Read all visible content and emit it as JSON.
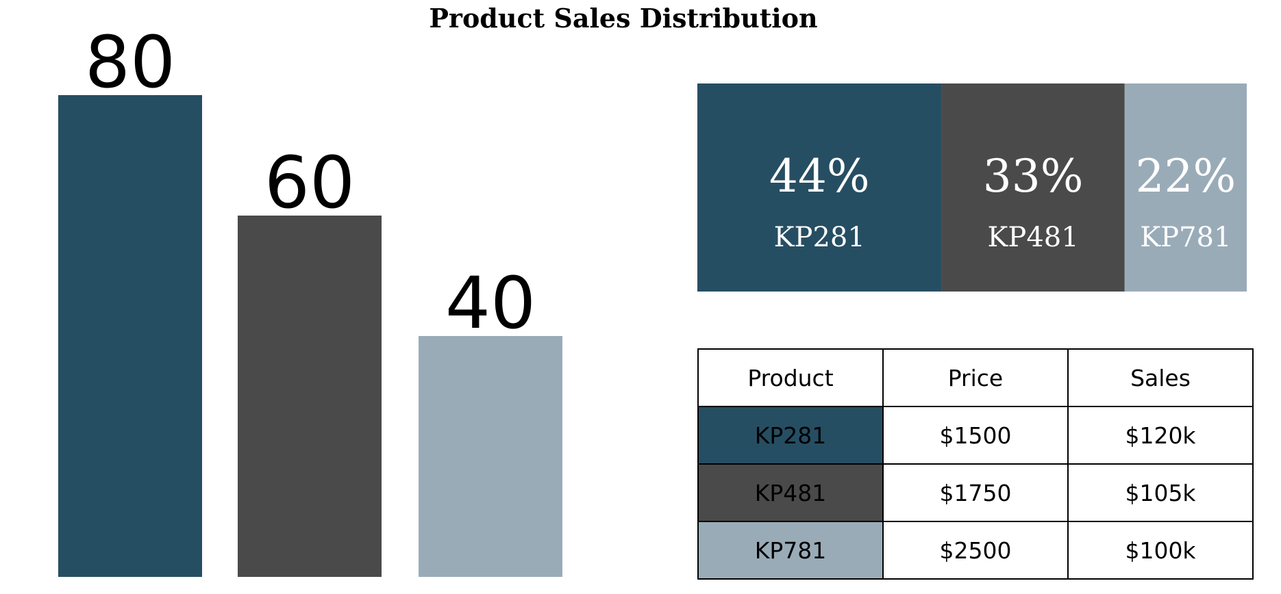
{
  "chart_data": {
    "title": "Product Sales Distribution",
    "bar_chart": {
      "type": "bar",
      "categories": [
        "KP281",
        "KP481",
        "KP781"
      ],
      "values": [
        80,
        60,
        40
      ],
      "data_labels": [
        "80",
        "60",
        "40"
      ],
      "ylim": [
        0,
        100
      ],
      "grid": false,
      "axes_visible": false
    },
    "share_chart": {
      "type": "stacked-bar",
      "orientation": "horizontal",
      "segments": [
        {
          "name": "KP281",
          "value": 44,
          "label": "44%"
        },
        {
          "name": "KP481",
          "value": 33,
          "label": "33%"
        },
        {
          "name": "KP781",
          "value": 22,
          "label": "22%"
        }
      ]
    },
    "table": {
      "type": "table",
      "columns": [
        "Product",
        "Price",
        "Sales"
      ],
      "rows": [
        [
          "KP281",
          "$1500",
          "$120k"
        ],
        [
          "KP481",
          "$1750",
          "$105k"
        ],
        [
          "KP781",
          "$2500",
          "$100k"
        ]
      ]
    },
    "colors": {
      "KP281": "#264e63",
      "KP481": "#4a4a4a",
      "KP781": "#9aabb8"
    }
  }
}
